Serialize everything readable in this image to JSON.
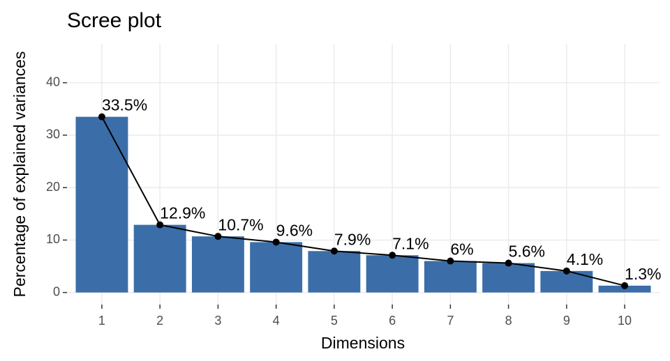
{
  "chart_data": {
    "type": "bar",
    "title": "Scree plot",
    "xlabel": "Dimensions",
    "ylabel": "Percentage of explained variances",
    "categories": [
      "1",
      "2",
      "3",
      "4",
      "5",
      "6",
      "7",
      "8",
      "9",
      "10"
    ],
    "values": [
      33.5,
      12.9,
      10.7,
      9.6,
      7.9,
      7.1,
      6,
      5.6,
      4.1,
      1.3
    ],
    "value_labels": [
      "33.5%",
      "12.9%",
      "10.7%",
      "9.6%",
      "7.9%",
      "7.1%",
      "6%",
      "5.6%",
      "4.1%",
      "1.3%"
    ],
    "color": "#3B6EA8",
    "line_color": "#000000",
    "ylim": [
      -2.3,
      47.4
    ],
    "yticks": [
      0,
      10,
      20,
      30,
      40
    ],
    "grid": true
  }
}
